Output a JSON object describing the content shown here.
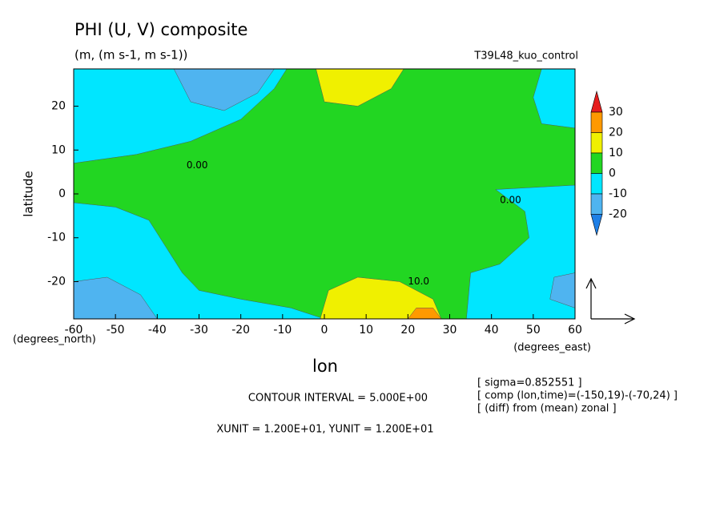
{
  "chart_data": {
    "type": "contour",
    "title": "PHI (U, V) composite",
    "subtitle": "(m, (m s-1, m s-1))",
    "experiment": "T39L48_kuo_control",
    "xlabel": "lon",
    "ylabel": "latitude",
    "xunit_label": "(degrees_east)",
    "yunit_label": "(degrees_north)",
    "xlim": [
      -60,
      60
    ],
    "ylim": [
      -28.5,
      28.5
    ],
    "xticks": [
      -60,
      -50,
      -40,
      -30,
      -20,
      -10,
      0,
      10,
      20,
      30,
      40,
      50,
      60
    ],
    "yticks": [
      -20,
      -10,
      0,
      10,
      20
    ],
    "levels": [
      -20,
      -10,
      0,
      10,
      20,
      30
    ],
    "level_colors": [
      "#1e7fe6",
      "#4fb4f0",
      "#00e6ff",
      "#22d622",
      "#f0f000",
      "#ff9900",
      "#e61e1e"
    ],
    "contour_labels": [
      {
        "value": 0,
        "label": "0.00"
      },
      {
        "value": 0,
        "label": "0.00"
      },
      {
        "value": 10,
        "label": "10.0"
      }
    ],
    "info": [
      "[ sigma=0.852551 ]",
      "[ comp (lon,time)=(-150,19)-(-70,24) ]",
      "[ (diff) from (mean) zonal ]"
    ],
    "contour_interval": "CONTOUR INTERVAL = 5.000E+00",
    "vector_units": "XUNIT = 1.200E+01, YUNIT = 1.200E+01"
  }
}
